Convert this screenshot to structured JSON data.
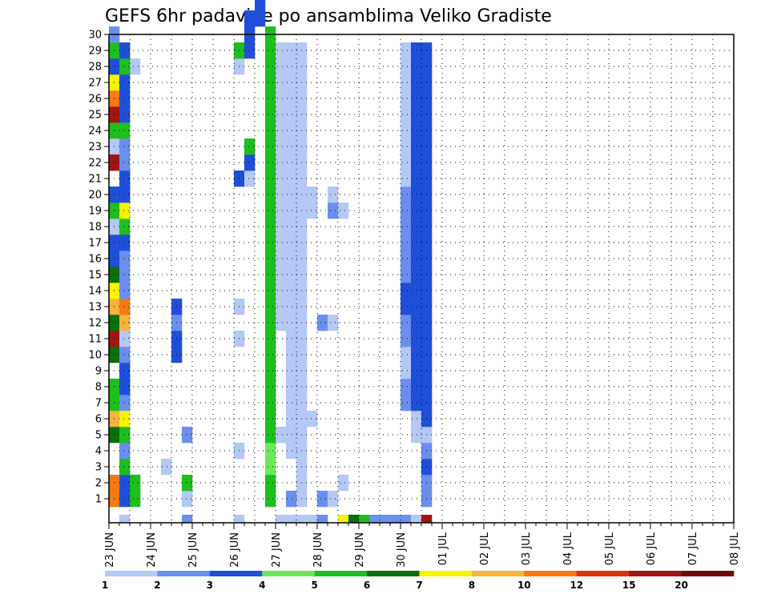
{
  "chart_data": {
    "type": "heatmap",
    "title": "GEFS 6hr padavine po ansamblima Veliko Gradiste",
    "xlabel": "",
    "ylabel": "",
    "x_ticks": [
      "23 JUN",
      "24 JUN",
      "25 JUN",
      "26 JUN",
      "27 JUN",
      "28 JUN",
      "29 JUN",
      "30 JUN",
      "01 JUL",
      "02 JUL",
      "03 JUL",
      "04 JUL",
      "05 JUL",
      "06 JUL",
      "07 JUL",
      "08 JUL"
    ],
    "y_ticks": [
      "1",
      "2",
      "3",
      "4",
      "5",
      "6",
      "7",
      "8",
      "9",
      "10",
      "11",
      "12",
      "13",
      "14",
      "15",
      "16",
      "17",
      "18",
      "19",
      "20",
      "21",
      "22",
      "23",
      "24",
      "25",
      "26",
      "27",
      "28",
      "29",
      "30"
    ],
    "x_unit": "6-hour step from 23 JUN 00",
    "grid": true,
    "colorbar": {
      "labels": [
        "1",
        "2",
        "3",
        "4",
        "5",
        "6",
        "7",
        "8",
        "10",
        "12",
        "15",
        "20"
      ],
      "colors": [
        "#b4c8f5",
        "#6b8ff0",
        "#1f4fd8",
        "#6ee85a",
        "#1cbf1c",
        "#0a6e0a",
        "#f5f500",
        "#f5b43c",
        "#f57a14",
        "#dc320a",
        "#a01414",
        "#6e0a0a"
      ]
    },
    "cells": [
      [
        23,
        0,
        1
      ],
      [
        30,
        0,
        1
      ],
      [
        0,
        1,
        2
      ],
      [
        1,
        1,
        1
      ],
      [
        1,
        2,
        3
      ],
      [
        1,
        3,
        2
      ],
      [
        1,
        4,
        1
      ],
      [
        1,
        5,
        2
      ],
      [
        0,
        6,
        2
      ],
      [
        1,
        7,
        3
      ],
      [
        1,
        8,
        3
      ],
      [
        1,
        9,
        2
      ],
      [
        1,
        10,
        2
      ],
      [
        1,
        11,
        2
      ],
      [
        0,
        12,
        2
      ],
      [
        1,
        13,
        3
      ],
      [
        1,
        14,
        2
      ],
      [
        0,
        15,
        2
      ],
      [
        0,
        16,
        2
      ],
      [
        0,
        17,
        2
      ],
      [
        0,
        18,
        2
      ],
      [
        1,
        19,
        3
      ],
      [
        1,
        20,
        3
      ],
      [
        1,
        21,
        3
      ],
      [
        0,
        22,
        2
      ],
      [
        0,
        23,
        1
      ],
      [
        0,
        24,
        1
      ],
      [
        1,
        25,
        1
      ],
      [
        1,
        26,
        1
      ],
      [
        0,
        27,
        1
      ],
      [
        2,
        28,
        1
      ],
      [
        1,
        29,
        1
      ],
      [
        0,
        1,
        9
      ],
      [
        0,
        2,
        9
      ],
      [
        0,
        5,
        6
      ],
      [
        0,
        6,
        8
      ],
      [
        0,
        7,
        5
      ],
      [
        0,
        8,
        5
      ],
      [
        0,
        10,
        6
      ],
      [
        0,
        11,
        11
      ],
      [
        0,
        12,
        6
      ],
      [
        0,
        13,
        8
      ],
      [
        0,
        14,
        7
      ],
      [
        0,
        15,
        6
      ],
      [
        0,
        16,
        3
      ],
      [
        0,
        17,
        3
      ],
      [
        0,
        18,
        1
      ],
      [
        0,
        19,
        5
      ],
      [
        0,
        20,
        3
      ],
      [
        0,
        22,
        11
      ],
      [
        0,
        24,
        5
      ],
      [
        0,
        25,
        11
      ],
      [
        0,
        26,
        9
      ],
      [
        0,
        27,
        7
      ],
      [
        0,
        28,
        3
      ],
      [
        0,
        29,
        5
      ],
      [
        0,
        30,
        2
      ],
      [
        1,
        0,
        1
      ],
      [
        1,
        1,
        3
      ],
      [
        2,
        1,
        5
      ],
      [
        2,
        2,
        5
      ],
      [
        1,
        3,
        5
      ],
      [
        1,
        4,
        2
      ],
      [
        1,
        5,
        5
      ],
      [
        1,
        6,
        7
      ],
      [
        1,
        7,
        2
      ],
      [
        1,
        8,
        3
      ],
      [
        1,
        9,
        3
      ],
      [
        1,
        10,
        2
      ],
      [
        1,
        11,
        1
      ],
      [
        1,
        12,
        8
      ],
      [
        1,
        13,
        9
      ],
      [
        1,
        14,
        2
      ],
      [
        1,
        15,
        2
      ],
      [
        1,
        16,
        2
      ],
      [
        1,
        17,
        3
      ],
      [
        1,
        18,
        5
      ],
      [
        1,
        19,
        7
      ],
      [
        1,
        20,
        3
      ],
      [
        1,
        21,
        3
      ],
      [
        1,
        22,
        2
      ],
      [
        1,
        23,
        2
      ],
      [
        1,
        24,
        5
      ],
      [
        1,
        25,
        3
      ],
      [
        1,
        26,
        3
      ],
      [
        1,
        27,
        3
      ],
      [
        1,
        28,
        5
      ],
      [
        1,
        29,
        3
      ],
      [
        5,
        3,
        1
      ],
      [
        7,
        1,
        1
      ],
      [
        7,
        5,
        2
      ],
      [
        6,
        10,
        3
      ],
      [
        6,
        11,
        3
      ],
      [
        6,
        12,
        2
      ],
      [
        6,
        13,
        3
      ],
      [
        7,
        0,
        2
      ],
      [
        7,
        2,
        5
      ],
      [
        12,
        0,
        1
      ],
      [
        12,
        4,
        1
      ],
      [
        12,
        11,
        1
      ],
      [
        12,
        13,
        1
      ],
      [
        12,
        21,
        3
      ],
      [
        12,
        28,
        1
      ],
      [
        12,
        29,
        5
      ],
      [
        13,
        29,
        3
      ],
      [
        13,
        21,
        1
      ],
      [
        13,
        22,
        3
      ],
      [
        13,
        23,
        5
      ],
      [
        13,
        30,
        3
      ],
      [
        13,
        31,
        3
      ],
      [
        14,
        31,
        3
      ],
      [
        14,
        32,
        3
      ],
      [
        14,
        33,
        3
      ],
      [
        14,
        34,
        2
      ],
      [
        14,
        35,
        3
      ],
      [
        14,
        36,
        3
      ],
      [
        14,
        37,
        2
      ],
      [
        15,
        1,
        5
      ],
      [
        15,
        2,
        5
      ],
      [
        15,
        3,
        4
      ],
      [
        15,
        4,
        4
      ],
      [
        15,
        5,
        5
      ],
      [
        15,
        6,
        5
      ],
      [
        15,
        7,
        5
      ],
      [
        15,
        8,
        5
      ],
      [
        15,
        9,
        5
      ],
      [
        15,
        10,
        5
      ],
      [
        15,
        11,
        5
      ],
      [
        15,
        12,
        5
      ],
      [
        15,
        13,
        5
      ],
      [
        15,
        14,
        5
      ],
      [
        15,
        15,
        5
      ],
      [
        15,
        16,
        5
      ],
      [
        15,
        17,
        5
      ],
      [
        15,
        18,
        5
      ],
      [
        15,
        19,
        5
      ],
      [
        15,
        20,
        5
      ],
      [
        15,
        21,
        5
      ],
      [
        15,
        22,
        5
      ],
      [
        15,
        23,
        5
      ],
      [
        15,
        24,
        5
      ],
      [
        15,
        25,
        5
      ],
      [
        15,
        26,
        5
      ],
      [
        15,
        27,
        5
      ],
      [
        15,
        28,
        5
      ],
      [
        15,
        29,
        5
      ],
      [
        15,
        30,
        5
      ],
      [
        16,
        0,
        1
      ],
      [
        16,
        5,
        1
      ],
      [
        16,
        12,
        1
      ],
      [
        16,
        13,
        1
      ],
      [
        16,
        14,
        1
      ],
      [
        16,
        15,
        1
      ],
      [
        16,
        16,
        1
      ],
      [
        16,
        17,
        1
      ],
      [
        16,
        18,
        1
      ],
      [
        16,
        19,
        1
      ],
      [
        16,
        20,
        1
      ],
      [
        16,
        21,
        1
      ],
      [
        16,
        22,
        1
      ],
      [
        16,
        23,
        1
      ],
      [
        16,
        24,
        1
      ],
      [
        16,
        25,
        1
      ],
      [
        16,
        26,
        1
      ],
      [
        16,
        27,
        1
      ],
      [
        16,
        28,
        1
      ],
      [
        16,
        29,
        1
      ],
      [
        17,
        0,
        1
      ],
      [
        17,
        1,
        2
      ],
      [
        17,
        4,
        1
      ],
      [
        17,
        5,
        1
      ],
      [
        17,
        6,
        1
      ],
      [
        17,
        7,
        1
      ],
      [
        17,
        8,
        1
      ],
      [
        17,
        9,
        1
      ],
      [
        17,
        10,
        1
      ],
      [
        17,
        11,
        1
      ],
      [
        17,
        12,
        1
      ],
      [
        17,
        13,
        1
      ],
      [
        17,
        14,
        1
      ],
      [
        17,
        15,
        1
      ],
      [
        17,
        16,
        1
      ],
      [
        17,
        17,
        1
      ],
      [
        17,
        18,
        1
      ],
      [
        17,
        19,
        1
      ],
      [
        17,
        20,
        1
      ],
      [
        17,
        21,
        1
      ],
      [
        17,
        22,
        1
      ],
      [
        17,
        23,
        1
      ],
      [
        17,
        24,
        1
      ],
      [
        17,
        25,
        1
      ],
      [
        17,
        26,
        1
      ],
      [
        17,
        27,
        1
      ],
      [
        17,
        28,
        1
      ],
      [
        17,
        29,
        1
      ],
      [
        18,
        0,
        1
      ],
      [
        18,
        1,
        1
      ],
      [
        18,
        2,
        1
      ],
      [
        18,
        3,
        1
      ],
      [
        18,
        4,
        1
      ],
      [
        18,
        5,
        1
      ],
      [
        18,
        6,
        1
      ],
      [
        18,
        7,
        1
      ],
      [
        18,
        8,
        1
      ],
      [
        18,
        9,
        1
      ],
      [
        18,
        10,
        1
      ],
      [
        18,
        11,
        1
      ],
      [
        18,
        12,
        1
      ],
      [
        18,
        13,
        1
      ],
      [
        18,
        14,
        1
      ],
      [
        18,
        15,
        1
      ],
      [
        18,
        16,
        1
      ],
      [
        18,
        17,
        1
      ],
      [
        18,
        18,
        1
      ],
      [
        18,
        19,
        1
      ],
      [
        18,
        20,
        1
      ],
      [
        18,
        21,
        1
      ],
      [
        18,
        22,
        1
      ],
      [
        18,
        23,
        1
      ],
      [
        18,
        24,
        1
      ],
      [
        18,
        25,
        1
      ],
      [
        18,
        26,
        1
      ],
      [
        18,
        27,
        1
      ],
      [
        18,
        28,
        1
      ],
      [
        18,
        29,
        1
      ],
      [
        19,
        0,
        1
      ],
      [
        19,
        6,
        1
      ],
      [
        19,
        19,
        1
      ],
      [
        19,
        20,
        1
      ],
      [
        20,
        0,
        2
      ],
      [
        20,
        1,
        2
      ],
      [
        20,
        12,
        2
      ],
      [
        21,
        1,
        1
      ],
      [
        21,
        12,
        1
      ],
      [
        21,
        19,
        2
      ],
      [
        21,
        20,
        1
      ],
      [
        22,
        2,
        1
      ],
      [
        22,
        19,
        1
      ],
      [
        22,
        0,
        7
      ],
      [
        23,
        0,
        6
      ],
      [
        24,
        0,
        5
      ],
      [
        25,
        0,
        2
      ],
      [
        26,
        0,
        2
      ],
      [
        27,
        0,
        2
      ],
      [
        28,
        0,
        2
      ],
      [
        29,
        0,
        1
      ],
      [
        28,
        7,
        2
      ],
      [
        28,
        8,
        2
      ],
      [
        28,
        9,
        1
      ],
      [
        28,
        10,
        1
      ],
      [
        28,
        11,
        2
      ],
      [
        28,
        12,
        2
      ],
      [
        28,
        13,
        3
      ],
      [
        28,
        14,
        3
      ],
      [
        28,
        15,
        2
      ],
      [
        28,
        16,
        2
      ],
      [
        28,
        17,
        2
      ],
      [
        28,
        18,
        2
      ],
      [
        28,
        19,
        2
      ],
      [
        28,
        20,
        2
      ],
      [
        28,
        21,
        1
      ],
      [
        28,
        22,
        1
      ],
      [
        28,
        23,
        1
      ],
      [
        28,
        24,
        1
      ],
      [
        28,
        25,
        1
      ],
      [
        28,
        26,
        1
      ],
      [
        28,
        27,
        1
      ],
      [
        28,
        28,
        1
      ],
      [
        28,
        29,
        1
      ],
      [
        29,
        0,
        1
      ],
      [
        29,
        5,
        1
      ],
      [
        29,
        6,
        1
      ],
      [
        29,
        7,
        3
      ],
      [
        29,
        8,
        3
      ],
      [
        29,
        9,
        3
      ],
      [
        29,
        10,
        3
      ],
      [
        29,
        11,
        3
      ],
      [
        29,
        12,
        3
      ],
      [
        29,
        13,
        3
      ],
      [
        29,
        14,
        3
      ],
      [
        29,
        15,
        3
      ],
      [
        29,
        16,
        3
      ],
      [
        29,
        17,
        3
      ],
      [
        29,
        18,
        3
      ],
      [
        29,
        19,
        3
      ],
      [
        29,
        20,
        3
      ],
      [
        29,
        21,
        3
      ],
      [
        29,
        22,
        3
      ],
      [
        29,
        23,
        3
      ],
      [
        29,
        24,
        3
      ],
      [
        29,
        25,
        3
      ],
      [
        29,
        26,
        3
      ],
      [
        29,
        27,
        3
      ],
      [
        29,
        28,
        3
      ],
      [
        29,
        29,
        3
      ],
      [
        30,
        0,
        11
      ],
      [
        30,
        1,
        2
      ],
      [
        30,
        2,
        2
      ],
      [
        30,
        3,
        3
      ],
      [
        30,
        4,
        2
      ],
      [
        30,
        5,
        1
      ],
      [
        30,
        6,
        3
      ],
      [
        30,
        7,
        3
      ],
      [
        30,
        8,
        3
      ],
      [
        30,
        9,
        3
      ],
      [
        30,
        10,
        3
      ],
      [
        30,
        11,
        3
      ],
      [
        30,
        12,
        3
      ],
      [
        30,
        13,
        3
      ],
      [
        30,
        14,
        3
      ],
      [
        30,
        15,
        3
      ],
      [
        30,
        16,
        3
      ],
      [
        30,
        17,
        3
      ],
      [
        30,
        18,
        3
      ],
      [
        30,
        19,
        3
      ],
      [
        30,
        20,
        3
      ],
      [
        30,
        21,
        3
      ],
      [
        30,
        22,
        3
      ],
      [
        30,
        23,
        3
      ],
      [
        30,
        24,
        3
      ],
      [
        30,
        25,
        3
      ],
      [
        30,
        26,
        3
      ],
      [
        30,
        27,
        3
      ],
      [
        30,
        28,
        3
      ],
      [
        30,
        29,
        3
      ]
    ]
  }
}
